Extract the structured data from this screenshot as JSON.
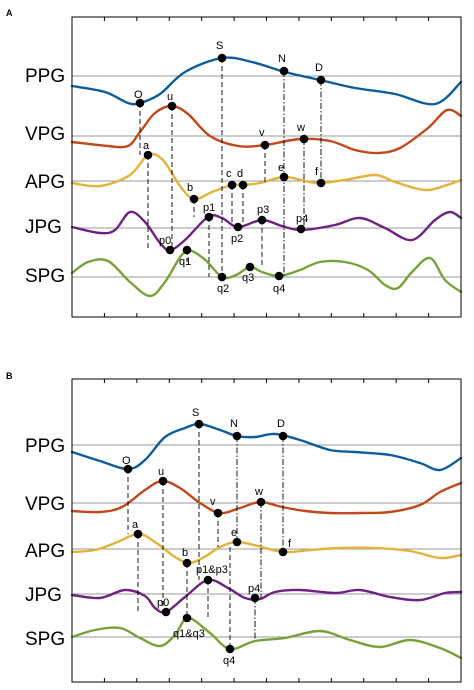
{
  "colors": {
    "ppg": "#0e5c9c",
    "vpg": "#c2471a",
    "apg": "#e2b23a",
    "jpg": "#6e2382",
    "spg": "#77a23a"
  },
  "rows": [
    "PPG",
    "VPG",
    "APG",
    "JPG",
    "SPG"
  ],
  "panels": [
    {
      "letter": "A",
      "points": [
        {
          "key": "O",
          "label": "O"
        },
        {
          "key": "S",
          "label": "S"
        },
        {
          "key": "N",
          "label": "N"
        },
        {
          "key": "D",
          "label": "D"
        },
        {
          "key": "u",
          "label": "u"
        },
        {
          "key": "v",
          "label": "v"
        },
        {
          "key": "w",
          "label": "w"
        },
        {
          "key": "a",
          "label": "a"
        },
        {
          "key": "b",
          "label": "b"
        },
        {
          "key": "c",
          "label": "c"
        },
        {
          "key": "d",
          "label": "d"
        },
        {
          "key": "e",
          "label": "e"
        },
        {
          "key": "f",
          "label": "f"
        },
        {
          "key": "p0",
          "label": "p0"
        },
        {
          "key": "p1",
          "label": "p1"
        },
        {
          "key": "p2",
          "label": "p2"
        },
        {
          "key": "p3",
          "label": "p3"
        },
        {
          "key": "p4",
          "label": "p4"
        },
        {
          "key": "q1",
          "label": "q1"
        },
        {
          "key": "q2",
          "label": "q2"
        },
        {
          "key": "q3",
          "label": "q3"
        },
        {
          "key": "q4",
          "label": "q4"
        }
      ]
    },
    {
      "letter": "B",
      "points": [
        {
          "key": "O",
          "label": "O"
        },
        {
          "key": "S",
          "label": "S"
        },
        {
          "key": "N",
          "label": "N"
        },
        {
          "key": "D",
          "label": "D"
        },
        {
          "key": "u",
          "label": "u"
        },
        {
          "key": "v",
          "label": "v"
        },
        {
          "key": "w",
          "label": "w"
        },
        {
          "key": "a",
          "label": "a"
        },
        {
          "key": "b",
          "label": "b"
        },
        {
          "key": "e",
          "label": "e"
        },
        {
          "key": "f",
          "label": "f"
        },
        {
          "key": "p0",
          "label": "p0"
        },
        {
          "key": "p1p3",
          "label": "p1&p3"
        },
        {
          "key": "p4",
          "label": "p4"
        },
        {
          "key": "q1q3",
          "label": "q1&q3"
        },
        {
          "key": "q4",
          "label": "q4"
        }
      ]
    }
  ]
}
